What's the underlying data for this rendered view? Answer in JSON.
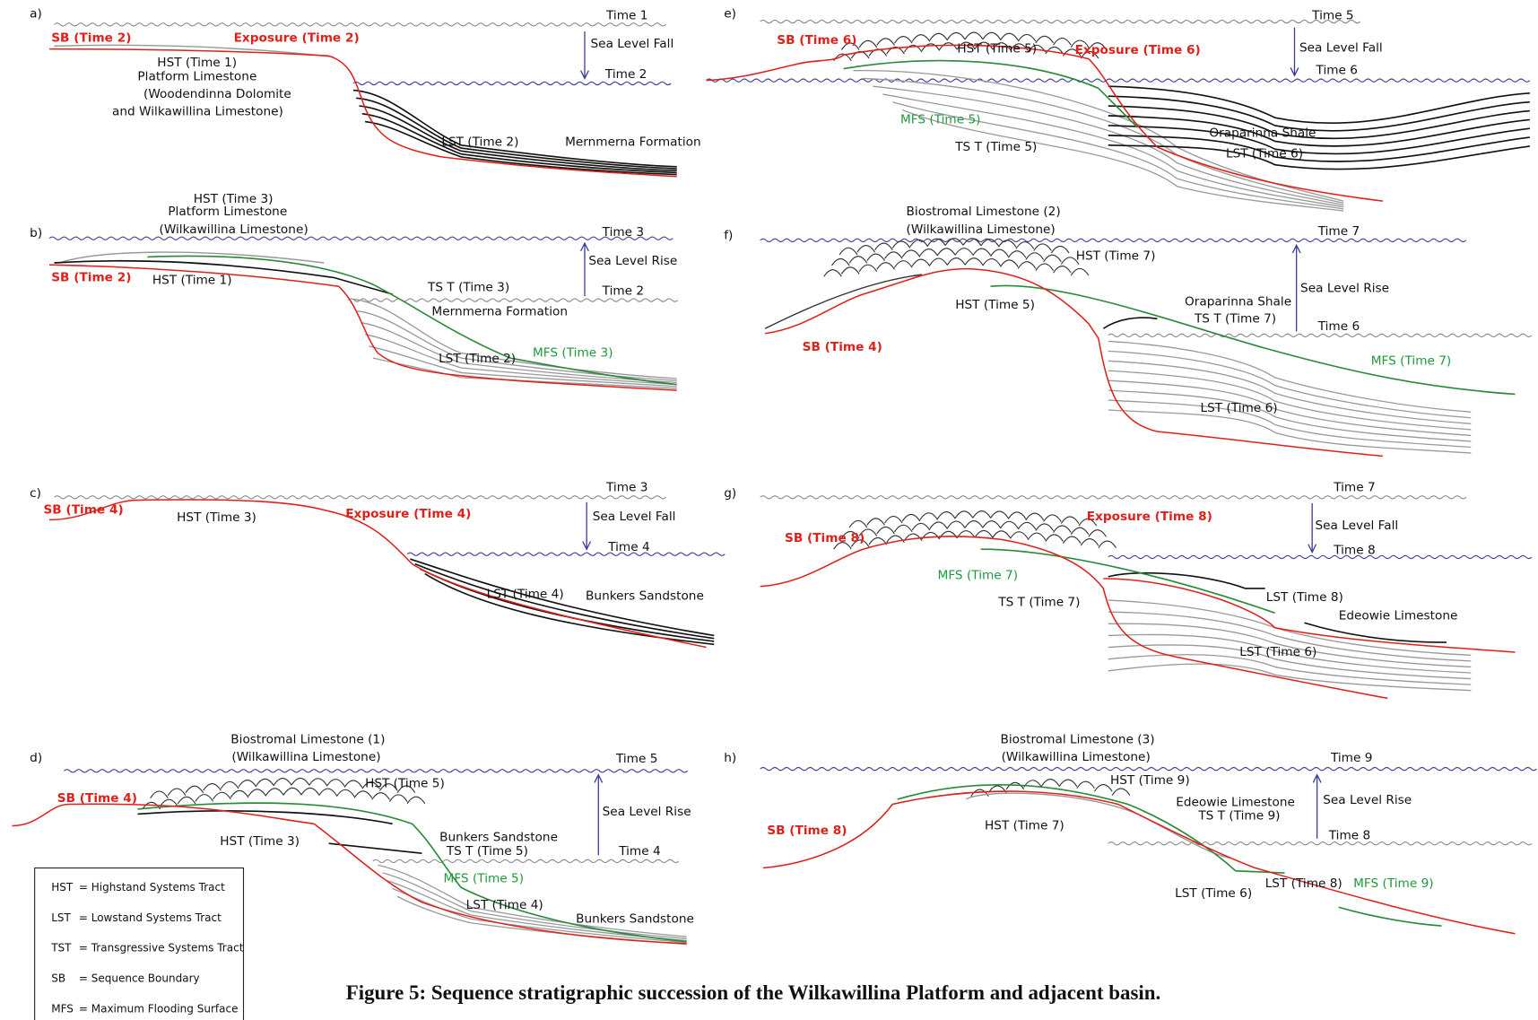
{
  "panels": [
    {
      "letter": "a)",
      "labels": [
        "Time 1",
        "SB (Time 2)",
        "Exposure (Time 2)",
        "Sea Level Fall",
        "HST (Time 1)",
        "Time 2",
        "Platform Limestone",
        "(Woodendinna Dolomite",
        "and Wilkawillina Limestone)",
        "LST (Time 2)",
        "Mernmerna Formation"
      ]
    },
    {
      "letter": "b)",
      "labels": [
        "HST (Time 3)",
        "Platform Limestone",
        "(Wilkawillina Limestone)",
        "Time 3",
        "Sea Level Rise",
        "SB (Time 2)",
        "HST (Time 1)",
        "TS T (Time 3)",
        "Time 2",
        "Mernmerna Formation",
        "LST (Time 2)",
        "MFS (Time 3)"
      ]
    },
    {
      "letter": "c)",
      "labels": [
        "Time 3",
        "SB (Time 4)",
        "HST (Time 3)",
        "Exposure (Time 4)",
        "Sea Level Fall",
        "Time 4",
        "LST (Time 4)",
        "Bunkers Sandstone"
      ]
    },
    {
      "letter": "d)",
      "labels": [
        "Biostromal Limestone (1)",
        "(Wilkawillina Limestone)",
        "Time 5",
        "SB (Time 4)",
        "HST (Time 5)",
        "Sea Level Rise",
        "HST (Time 3)",
        "Bunkers Sandstone",
        "TS T (Time 5)",
        "Time 4",
        "MFS (Time 5)",
        "LST (Time 4)",
        "Bunkers Sandstone"
      ]
    },
    {
      "letter": "e)",
      "labels": [
        "Time 5",
        "SB (Time 6)",
        "HST (Time 5)",
        "Exposure (Time 6)",
        "Sea Level Fall",
        "Time 6",
        "MFS (Time 5)",
        "Oraparinna Shale",
        "TS T (Time 5)",
        "LST (Time 6)"
      ]
    },
    {
      "letter": "f)",
      "labels": [
        "Biostromal Limestone (2)",
        "(Wilkawillina Limestone)",
        "Time 7",
        "HST (Time 7)",
        "Sea Level Rise",
        "Oraparinna Shale",
        "HST (Time 5)",
        "TS T (Time 7)",
        "Time 6",
        "SB (Time 4)",
        "MFS (Time 7)",
        "LST (Time 6)"
      ]
    },
    {
      "letter": "g)",
      "labels": [
        "Time 7",
        "Exposure (Time 8)",
        "Sea Level Fall",
        "SB (Time 8)",
        "Time 8",
        "MFS (Time 7)",
        "LST (Time 8)",
        "TS T (Time 7)",
        "Edeowie Limestone",
        "LST (Time 6)"
      ]
    },
    {
      "letter": "h)",
      "labels": [
        "Biostromal Limestone (3)",
        "(Wilkawillina Limestone)",
        "Time 9",
        "HST (Time 9)",
        "Edeowie Limestone",
        "Sea Level Rise",
        "TS T (Time 9)",
        "SB (Time 8)",
        "HST (Time 7)",
        "Time 8",
        "LST (Time 8)",
        "MFS (Time 9)",
        "LST (Time 6)"
      ]
    }
  ],
  "legend": [
    {
      "abbr": "HST",
      "definition": "= Highstand Systems Tract"
    },
    {
      "abbr": "LST",
      "definition": "= Lowstand Systems Tract"
    },
    {
      "abbr": "TST",
      "definition": "= Transgressive Systems Tract"
    },
    {
      "abbr": "SB",
      "definition": "= Sequence Boundary"
    },
    {
      "abbr": "MFS",
      "definition": "= Maximum Flooding Surface"
    }
  ],
  "caption": "Figure 5: Sequence stratigraphic succession of the Wilkawillina Platform and adjacent basin."
}
